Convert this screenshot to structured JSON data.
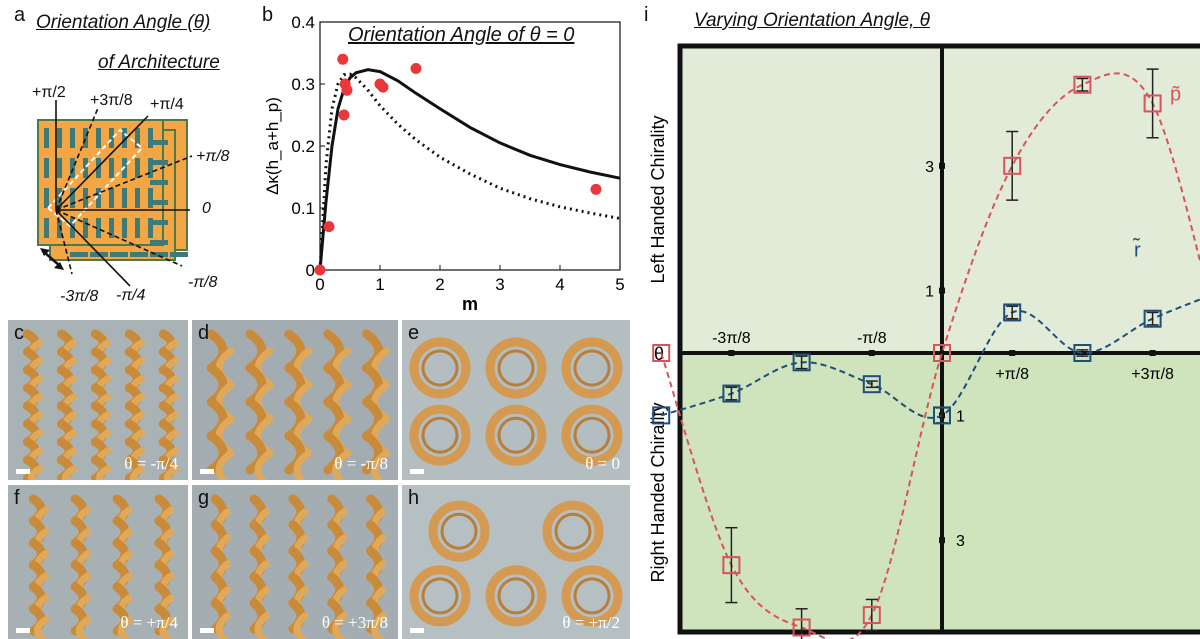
{
  "panels": {
    "a": {
      "letter": "a",
      "title_line1": "Orientation Angle (θ)",
      "title_line2": "of Architecture",
      "angle_labels": {
        "p_pi_2": "+π/2",
        "p_3pi_8": "+3π/8",
        "p_pi_4": "+π/4",
        "p_pi_8": "+π/8",
        "zero": "0",
        "m_pi_8": "-π/8",
        "m_pi_4": "-π/4",
        "m_3pi_8": "-3π/8"
      }
    },
    "b": {
      "letter": "b",
      "legend": "Orientation Angle of θ = 0"
    },
    "photos": [
      {
        "id": "c",
        "letter": "c",
        "caption": "θ = -π/4"
      },
      {
        "id": "d",
        "letter": "d",
        "caption": "θ = -π/8"
      },
      {
        "id": "e",
        "letter": "e",
        "caption": "θ = 0"
      },
      {
        "id": "f",
        "letter": "f",
        "caption": "θ = +π/4"
      },
      {
        "id": "g",
        "letter": "g",
        "caption": "θ = +3π/8"
      },
      {
        "id": "h",
        "letter": "h",
        "caption": "θ = +π/2"
      }
    ],
    "i": {
      "letter": "i",
      "title": "Varying Orientation Angle, θ",
      "left_label": "Left Handed Chirality",
      "right_label": "Right Handed Chirality",
      "theta_label": "θ",
      "x_tick_labels": [
        "-3π/8",
        "-π/8",
        "+π/8",
        "+3π/8"
      ],
      "y_tick_labels_up": [
        "1",
        "3"
      ],
      "y_tick_labels_down": [
        "1",
        "3"
      ],
      "p_label": "p̃",
      "r_label": "r̃",
      "colors": {
        "p": "#d9545a",
        "r": "#1f4e79",
        "bg_top": "#e2ebd7",
        "bg_bottom": "#cfe3bd"
      }
    }
  },
  "chart_data": [
    {
      "type": "scatter",
      "panel": "b",
      "xlabel": "m",
      "ylabel": "Δκ(h_a+h_p)",
      "xlim": [
        0,
        5
      ],
      "ylim": [
        0,
        0.4
      ],
      "x_ticks": [
        0,
        1,
        2,
        3,
        4,
        5
      ],
      "y_ticks": [
        0,
        0.1,
        0.2,
        0.3,
        0.4
      ],
      "points": [
        [
          0.0,
          0.0
        ],
        [
          0.15,
          0.07
        ],
        [
          0.38,
          0.34
        ],
        [
          0.4,
          0.25
        ],
        [
          0.42,
          0.3
        ],
        [
          0.45,
          0.29
        ],
        [
          1.0,
          0.3
        ],
        [
          1.05,
          0.295
        ],
        [
          1.6,
          0.325
        ],
        [
          4.6,
          0.13
        ]
      ],
      "series": [
        {
          "style": "solid",
          "x": [
            0,
            0.1,
            0.2,
            0.3,
            0.4,
            0.5,
            0.6,
            0.8,
            1.0,
            1.3,
            1.6,
            2.0,
            2.5,
            3.0,
            3.5,
            4.0,
            4.5,
            5.0
          ],
          "y": [
            0,
            0.11,
            0.2,
            0.26,
            0.292,
            0.31,
            0.318,
            0.323,
            0.32,
            0.305,
            0.285,
            0.26,
            0.23,
            0.205,
            0.185,
            0.17,
            0.158,
            0.148
          ]
        },
        {
          "style": "dotted",
          "x": [
            0,
            0.1,
            0.2,
            0.3,
            0.4,
            0.5,
            0.6,
            0.8,
            1.0,
            1.3,
            1.6,
            2.0,
            2.5,
            3.0,
            3.5,
            4.0,
            4.5,
            5.0
          ],
          "y": [
            0,
            0.17,
            0.26,
            0.3,
            0.315,
            0.316,
            0.31,
            0.29,
            0.265,
            0.235,
            0.21,
            0.182,
            0.155,
            0.132,
            0.115,
            0.102,
            0.092,
            0.083
          ]
        }
      ]
    },
    {
      "type": "line",
      "panel": "i",
      "xlabel": "θ",
      "ylabel": "",
      "xlim": [
        -0.5,
        0.5
      ],
      "ylim": [
        -4.6,
        4.6
      ],
      "x_ticks": [
        "-3π/8",
        "-π/8",
        "+π/8",
        "+3π/8"
      ],
      "series": [
        {
          "name": "p̃",
          "color": "#d9545a",
          "points": [
            [
              -0.5,
              0.0
            ],
            [
              -0.375,
              -3.4
            ],
            [
              -0.25,
              -4.4
            ],
            [
              -0.125,
              -4.2
            ],
            [
              0.0,
              0.0
            ],
            [
              0.125,
              3.0
            ],
            [
              0.25,
              4.3
            ],
            [
              0.375,
              4.0
            ],
            [
              0.5,
              0.0
            ]
          ],
          "err": [
            0,
            0.6,
            0.3,
            0.25,
            0,
            0.55,
            0.1,
            0.55,
            0
          ]
        },
        {
          "name": "r̃",
          "color": "#1f4e79",
          "points": [
            [
              -0.5,
              -1.0
            ],
            [
              -0.375,
              -0.65
            ],
            [
              -0.25,
              -0.15
            ],
            [
              -0.125,
              -0.5
            ],
            [
              0.0,
              -1.0
            ],
            [
              0.125,
              0.65
            ],
            [
              0.25,
              0.0
            ],
            [
              0.375,
              0.55
            ],
            [
              0.5,
              1.0
            ]
          ],
          "err": [
            0,
            0.1,
            0.1,
            0.05,
            0.12,
            0.1,
            0.05,
            0.1,
            0
          ]
        }
      ]
    }
  ]
}
